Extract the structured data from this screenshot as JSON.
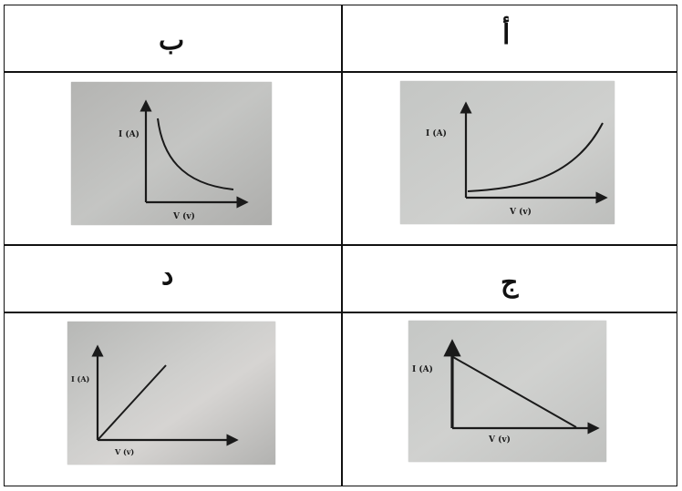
{
  "cells": {
    "a": {
      "label": "أ",
      "ylabel": "I (A)",
      "xlabel": "V (v)",
      "curve": "exponential-increase"
    },
    "b": {
      "label": "ب",
      "ylabel": "I (A)",
      "xlabel": "V (v)",
      "curve": "inverse-decrease"
    },
    "c": {
      "label": "ج",
      "ylabel": "I (A)",
      "xlabel": "V (v)",
      "curve": "linear-decrease"
    },
    "d": {
      "label": "د",
      "ylabel": "I (A)",
      "xlabel": "V (v)",
      "curve": "linear-increase"
    }
  },
  "colors": {
    "ink": "#1a1a1a",
    "photo_light": "#c9cbc9",
    "photo_dark": "#a9aaa8"
  }
}
